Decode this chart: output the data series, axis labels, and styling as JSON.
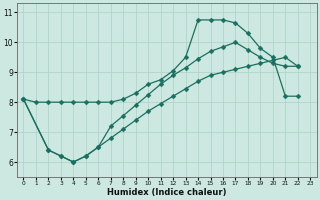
{
  "xlabel": "Humidex (Indice chaleur)",
  "bg_color": "#cce8e0",
  "line_color": "#1a7060",
  "grid_color": "#aad0c8",
  "xlim": [
    -0.5,
    23.5
  ],
  "ylim": [
    5.5,
    11.3
  ],
  "xticks": [
    0,
    1,
    2,
    3,
    4,
    5,
    6,
    7,
    8,
    9,
    10,
    11,
    12,
    13,
    14,
    15,
    16,
    17,
    18,
    19,
    20,
    21,
    22,
    23
  ],
  "yticks": [
    6,
    7,
    8,
    9,
    10,
    11
  ],
  "line1_x": [
    0,
    1,
    2,
    3,
    4,
    5,
    6,
    7,
    8,
    9,
    10,
    11,
    12,
    13,
    14,
    15,
    16,
    17,
    18,
    19,
    20,
    21,
    22
  ],
  "line1_y": [
    8.1,
    8.0,
    8.0,
    8.0,
    8.0,
    8.0,
    8.0,
    8.0,
    8.1,
    8.3,
    8.6,
    8.75,
    9.05,
    9.5,
    10.75,
    10.75,
    10.75,
    10.65,
    10.3,
    9.8,
    9.5,
    8.2,
    8.2
  ],
  "line2_x": [
    0,
    2,
    3,
    4,
    5,
    6,
    7,
    8,
    9,
    10,
    11,
    12,
    13,
    14,
    15,
    16,
    17,
    18,
    19,
    20,
    21,
    22
  ],
  "line2_y": [
    8.1,
    6.4,
    6.2,
    6.0,
    6.2,
    6.5,
    7.2,
    7.55,
    7.9,
    8.25,
    8.6,
    8.9,
    9.15,
    9.45,
    9.7,
    9.85,
    10.0,
    9.75,
    9.5,
    9.3,
    9.2,
    9.2
  ],
  "line3_x": [
    0,
    2,
    3,
    4,
    5,
    6,
    7,
    8,
    9,
    10,
    11,
    12,
    13,
    14,
    15,
    16,
    17,
    18,
    19,
    20,
    21,
    22
  ],
  "line3_y": [
    8.1,
    6.4,
    6.2,
    6.0,
    6.2,
    6.5,
    6.8,
    7.1,
    7.4,
    7.7,
    7.95,
    8.2,
    8.45,
    8.7,
    8.9,
    9.0,
    9.1,
    9.2,
    9.3,
    9.4,
    9.5,
    9.2
  ]
}
